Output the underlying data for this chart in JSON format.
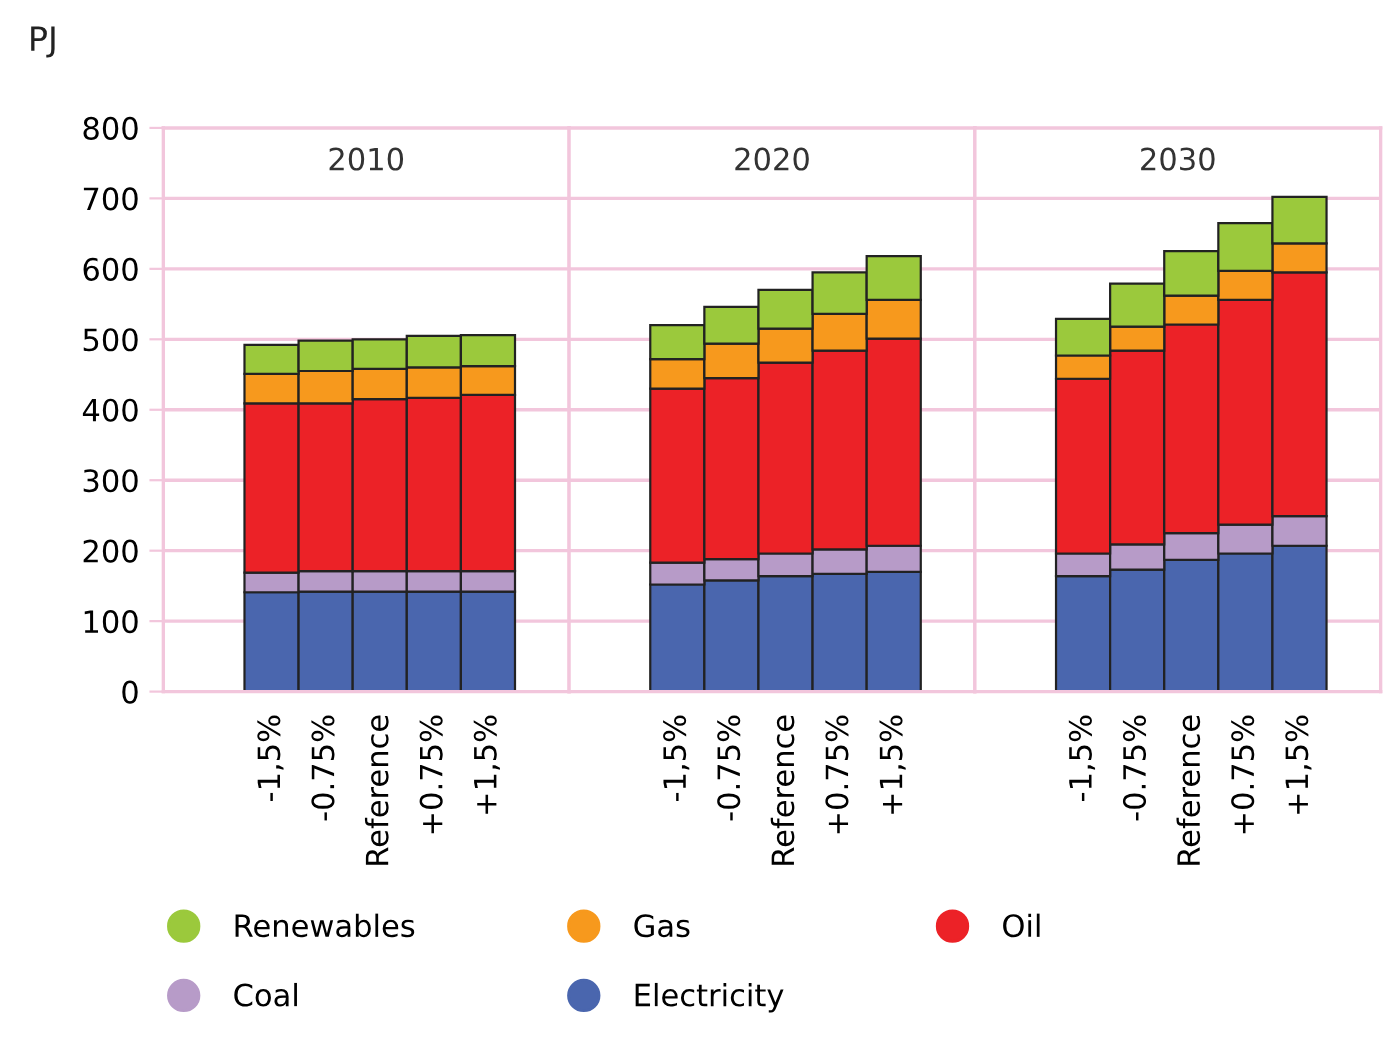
{
  "chart_data": [
    {
      "type": "bar",
      "title": "2010",
      "ylabel": "PJ",
      "stacked": true,
      "categories": [
        "-1,5%",
        "-0.75%",
        "Reference",
        "+0.75%",
        "+1,5%"
      ],
      "ylim": [
        0,
        800
      ],
      "yticks": [
        0,
        100,
        200,
        300,
        400,
        500,
        600,
        700,
        800
      ],
      "grid": "y",
      "legend": "bottom",
      "series": [
        {
          "name": "Electricity",
          "color": "#4a66ae",
          "values": [
            141,
            142,
            142,
            142,
            142
          ]
        },
        {
          "name": "Coal",
          "color": "#b79bc8",
          "values": [
            28,
            29,
            29,
            29,
            29
          ]
        },
        {
          "name": "Oil",
          "color": "#ec2227",
          "values": [
            240,
            238,
            244,
            246,
            250
          ]
        },
        {
          "name": "Gas",
          "color": "#f7991d",
          "values": [
            42,
            46,
            43,
            43,
            41
          ]
        },
        {
          "name": "Renewables",
          "color": "#9bc93c",
          "values": [
            41,
            43,
            42,
            45,
            44
          ]
        }
      ]
    },
    {
      "type": "bar",
      "title": "2020",
      "stacked": true,
      "categories": [
        "-1,5%",
        "-0.75%",
        "Reference",
        "+0.75%",
        "+1,5%"
      ],
      "ylim": [
        0,
        800
      ],
      "yticks": [
        0,
        100,
        200,
        300,
        400,
        500,
        600,
        700,
        800
      ],
      "grid": "y",
      "tick_labels": "x",
      "series": [
        {
          "color": "#4a66ae",
          "values": [
            152,
            158,
            164,
            167,
            170
          ]
        },
        {
          "color": "#b79bc8",
          "values": [
            31,
            30,
            32,
            35,
            37
          ]
        },
        {
          "color": "#ec2227",
          "values": [
            247,
            257,
            271,
            282,
            294
          ]
        },
        {
          "color": "#f7991d",
          "values": [
            42,
            49,
            48,
            52,
            55
          ]
        },
        {
          "color": "#9bc93c",
          "values": [
            48,
            52,
            55,
            59,
            62
          ]
        }
      ]
    },
    {
      "type": "bar",
      "title": "2030",
      "stacked": true,
      "categories": [
        "-1,5%",
        "-0.75%",
        "Reference",
        "+0.75%",
        "+1,5%"
      ],
      "ylim": [
        0,
        800
      ],
      "yticks": [
        0,
        100,
        200,
        300,
        400,
        500,
        600,
        700,
        800
      ],
      "grid": "y",
      "tick_labels": "x",
      "series": [
        {
          "color": "#4a66ae",
          "values": [
            164,
            173,
            187,
            196,
            207
          ]
        },
        {
          "color": "#b79bc8",
          "values": [
            32,
            36,
            38,
            41,
            42
          ]
        },
        {
          "color": "#ec2227",
          "values": [
            248,
            275,
            296,
            319,
            346
          ]
        },
        {
          "color": "#f7991d",
          "values": [
            33,
            34,
            41,
            41,
            41
          ]
        },
        {
          "color": "#9bc93c",
          "values": [
            52,
            61,
            63,
            68,
            66
          ]
        }
      ]
    }
  ]
}
